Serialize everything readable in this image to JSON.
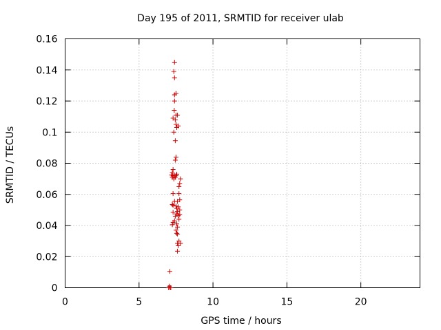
{
  "chart_data": {
    "type": "scatter",
    "title": "Day 195 of 2011, SRMTID for receiver ulab",
    "xlabel": "GPS time / hours",
    "ylabel": "SRMTID / TECUs",
    "xlim": [
      0,
      24
    ],
    "ylim": [
      0,
      0.16
    ],
    "xticks": [
      0,
      5,
      10,
      15,
      20
    ],
    "yticks": [
      0,
      0.02,
      0.04,
      0.06,
      0.08,
      0.1,
      0.12,
      0.14,
      0.16
    ],
    "xtick_labels": [
      "0",
      "5",
      "10",
      "15",
      "20"
    ],
    "ytick_labels": [
      "0",
      "0.02",
      "0.04",
      "0.06",
      "0.08",
      "0.1",
      "0.12",
      "0.14",
      "0.16"
    ],
    "grid": true,
    "marker": "+",
    "color": "#cc0000",
    "series": [
      {
        "points": [
          [
            7.0,
            0.0
          ],
          [
            7.05,
            0.001
          ],
          [
            7.1,
            0.0
          ],
          [
            7.15,
            0.0
          ],
          [
            7.08,
            0.0105
          ],
          [
            7.4,
            0.145
          ],
          [
            7.35,
            0.139
          ],
          [
            7.4,
            0.135
          ],
          [
            7.5,
            0.125
          ],
          [
            7.4,
            0.124
          ],
          [
            7.4,
            0.12
          ],
          [
            7.38,
            0.114
          ],
          [
            7.5,
            0.111
          ],
          [
            7.6,
            0.111
          ],
          [
            7.3,
            0.109
          ],
          [
            7.45,
            0.108
          ],
          [
            7.5,
            0.105
          ],
          [
            7.65,
            0.104
          ],
          [
            7.55,
            0.103
          ],
          [
            7.35,
            0.1
          ],
          [
            7.45,
            0.0945
          ],
          [
            7.5,
            0.084
          ],
          [
            7.45,
            0.082
          ],
          [
            7.3,
            0.076
          ],
          [
            7.25,
            0.074
          ],
          [
            7.2,
            0.0725
          ],
          [
            7.3,
            0.072
          ],
          [
            7.4,
            0.072
          ],
          [
            7.5,
            0.072
          ],
          [
            7.55,
            0.073
          ],
          [
            7.25,
            0.071
          ],
          [
            7.35,
            0.07
          ],
          [
            7.45,
            0.071
          ],
          [
            7.8,
            0.07
          ],
          [
            7.75,
            0.067
          ],
          [
            7.7,
            0.065
          ],
          [
            7.3,
            0.0605
          ],
          [
            7.7,
            0.0605
          ],
          [
            7.75,
            0.0565
          ],
          [
            7.6,
            0.0555
          ],
          [
            7.4,
            0.0555
          ],
          [
            7.25,
            0.0535
          ],
          [
            7.3,
            0.053
          ],
          [
            7.5,
            0.0525
          ],
          [
            7.65,
            0.052
          ],
          [
            7.55,
            0.051
          ],
          [
            7.75,
            0.05
          ],
          [
            7.6,
            0.049
          ],
          [
            7.3,
            0.0485
          ],
          [
            7.55,
            0.0475
          ],
          [
            7.75,
            0.047
          ],
          [
            7.65,
            0.0465
          ],
          [
            7.45,
            0.046
          ],
          [
            7.7,
            0.044
          ],
          [
            7.4,
            0.043
          ],
          [
            7.3,
            0.042
          ],
          [
            7.55,
            0.041
          ],
          [
            7.25,
            0.0405
          ],
          [
            7.6,
            0.039
          ],
          [
            7.5,
            0.037
          ],
          [
            7.55,
            0.035
          ],
          [
            7.6,
            0.0345
          ],
          [
            7.7,
            0.03
          ],
          [
            7.6,
            0.0285
          ],
          [
            7.8,
            0.0285
          ],
          [
            7.65,
            0.027
          ],
          [
            7.6,
            0.0235
          ]
        ]
      }
    ]
  }
}
